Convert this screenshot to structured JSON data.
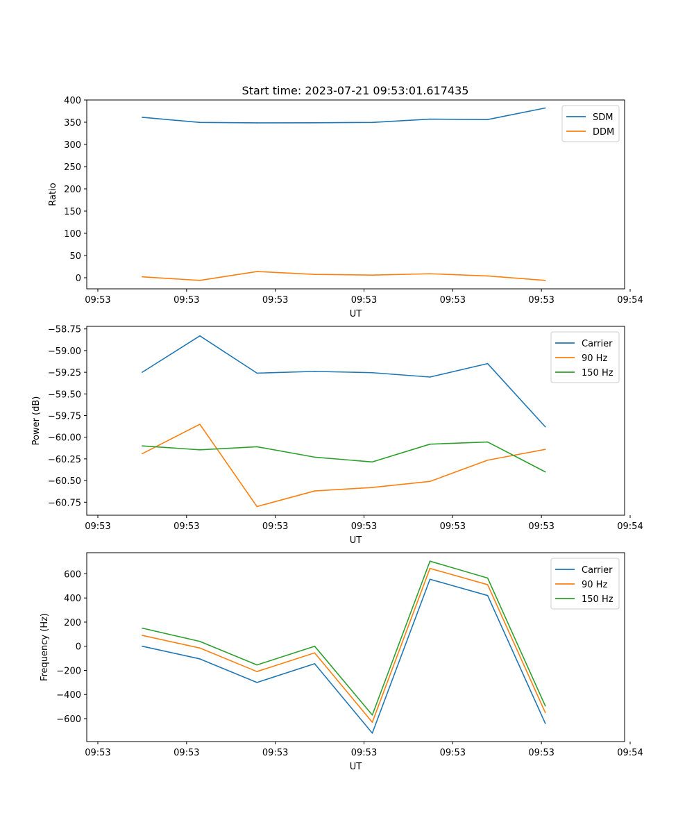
{
  "figure": {
    "title": "Start time: 2023-07-21 09:53:01.617435"
  },
  "colors": {
    "blue": "#1f77b4",
    "orange": "#ff7f0e",
    "green": "#2ca02c"
  },
  "chart_data": [
    {
      "type": "line",
      "title": "Start time: 2023-07-21 09:53:01.617435",
      "xlabel": "UT",
      "ylabel": "Ratio",
      "xlim": [
        0,
        9.7
      ],
      "ylim": [
        -25,
        400
      ],
      "xticks": [
        0.2,
        1.8,
        3.4,
        5.0,
        6.6,
        8.2,
        9.8
      ],
      "xtick_labels": [
        "09:53",
        "09:53",
        "09:53",
        "09:53",
        "09:53",
        "09:53",
        "09:54"
      ],
      "yticks": [
        0,
        50,
        100,
        150,
        200,
        250,
        300,
        350,
        400
      ],
      "ytick_labels": [
        "0",
        "50",
        "100",
        "150",
        "200",
        "250",
        "300",
        "350",
        "400"
      ],
      "x": [
        1.0,
        2.04,
        3.07,
        4.11,
        5.15,
        6.19,
        7.23,
        8.27
      ],
      "legend_position": "upper-right",
      "series": [
        {
          "name": "SDM",
          "color": "#1f77b4",
          "values": [
            361,
            349.5,
            348.5,
            348.8,
            349.5,
            357,
            356,
            382
          ]
        },
        {
          "name": "DDM",
          "color": "#ff7f0e",
          "values": [
            2,
            -6,
            14,
            7.5,
            6,
            9,
            4,
            -6
          ]
        }
      ]
    },
    {
      "type": "line",
      "title": "",
      "xlabel": "UT",
      "ylabel": "Power (dB)",
      "xlim": [
        0,
        9.7
      ],
      "ylim": [
        -60.9,
        -58.72
      ],
      "xticks": [
        0.2,
        1.8,
        3.4,
        5.0,
        6.6,
        8.2,
        9.8
      ],
      "xtick_labels": [
        "09:53",
        "09:53",
        "09:53",
        "09:53",
        "09:53",
        "09:53",
        "09:54"
      ],
      "yticks": [
        -60.75,
        -60.5,
        -60.25,
        -60.0,
        -59.75,
        -59.5,
        -59.25,
        -59.0,
        -58.75
      ],
      "ytick_labels": [
        "−60.75",
        "−60.50",
        "−60.25",
        "−60.00",
        "−59.75",
        "−59.50",
        "−59.25",
        "−59.00",
        "−58.75"
      ],
      "x": [
        1.0,
        2.04,
        3.07,
        4.11,
        5.15,
        6.19,
        7.23,
        8.27
      ],
      "legend_position": "upper-right",
      "series": [
        {
          "name": "Carrier",
          "color": "#1f77b4",
          "values": [
            -59.25,
            -58.83,
            -59.26,
            -59.24,
            -59.255,
            -59.305,
            -59.15,
            -59.88
          ]
        },
        {
          "name": "90 Hz",
          "color": "#ff7f0e",
          "values": [
            -60.19,
            -59.85,
            -60.8,
            -60.62,
            -60.58,
            -60.51,
            -60.265,
            -60.14
          ]
        },
        {
          "name": "150 Hz",
          "color": "#2ca02c",
          "values": [
            -60.1,
            -60.145,
            -60.11,
            -60.23,
            -60.285,
            -60.08,
            -60.055,
            -60.4
          ]
        }
      ]
    },
    {
      "type": "line",
      "title": "",
      "xlabel": "UT",
      "ylabel": "Frequency (Hz)",
      "xlim": [
        0,
        9.7
      ],
      "ylim": [
        -790,
        775
      ],
      "xticks": [
        0.2,
        1.8,
        3.4,
        5.0,
        6.6,
        8.2,
        9.8
      ],
      "xtick_labels": [
        "09:53",
        "09:53",
        "09:53",
        "09:53",
        "09:53",
        "09:53",
        "09:54"
      ],
      "yticks": [
        -600,
        -400,
        -200,
        0,
        200,
        400,
        600
      ],
      "ytick_labels": [
        "−600",
        "−400",
        "−200",
        "0",
        "200",
        "400",
        "600"
      ],
      "x": [
        1.0,
        2.04,
        3.07,
        4.11,
        5.15,
        6.19,
        7.23,
        8.27
      ],
      "legend_position": "upper-right",
      "series": [
        {
          "name": "Carrier",
          "color": "#1f77b4",
          "values": [
            0,
            -105,
            -300,
            -145,
            -720,
            555,
            420,
            -640
          ]
        },
        {
          "name": "90 Hz",
          "color": "#ff7f0e",
          "values": [
            90,
            -15,
            -210,
            -55,
            -630,
            645,
            510,
            -550
          ]
        },
        {
          "name": "150 Hz",
          "color": "#2ca02c",
          "values": [
            150,
            40,
            -155,
            0,
            -570,
            705,
            565,
            -495
          ]
        }
      ]
    }
  ]
}
